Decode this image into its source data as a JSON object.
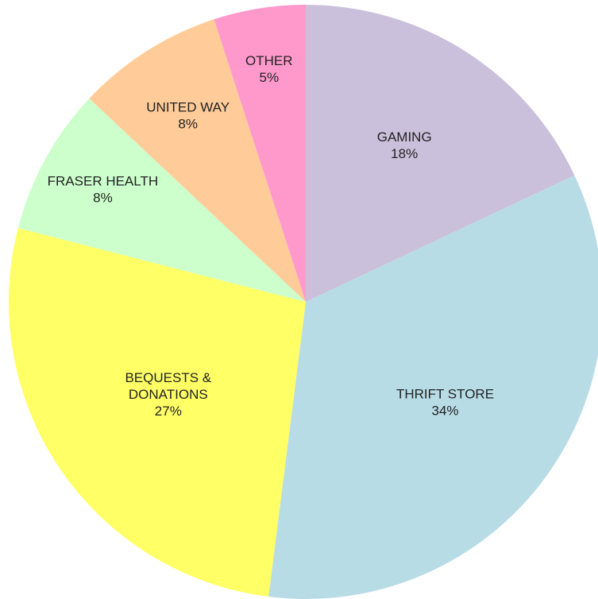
{
  "chart_data": {
    "type": "pie",
    "slices": [
      {
        "label_lines": [
          "GAMING"
        ],
        "percent_label": "18%",
        "value": 18,
        "color": "#CBC0DB"
      },
      {
        "label_lines": [
          "THRIFT STORE"
        ],
        "percent_label": "34%",
        "value": 34,
        "color": "#B8DCE6"
      },
      {
        "label_lines": [
          "BEQUESTS &",
          "DONATIONS"
        ],
        "percent_label": "27%",
        "value": 27,
        "color": "#FFFF66"
      },
      {
        "label_lines": [
          "FRASER HEALTH"
        ],
        "percent_label": "8%",
        "value": 8,
        "color": "#CCFFCC"
      },
      {
        "label_lines": [
          "UNITED WAY"
        ],
        "percent_label": "8%",
        "value": 8,
        "color": "#FFCC99"
      },
      {
        "label_lines": [
          "OTHER"
        ],
        "percent_label": "5%",
        "value": 5,
        "color": "#FF99CC"
      }
    ],
    "start": "top",
    "direction": "clockwise"
  }
}
